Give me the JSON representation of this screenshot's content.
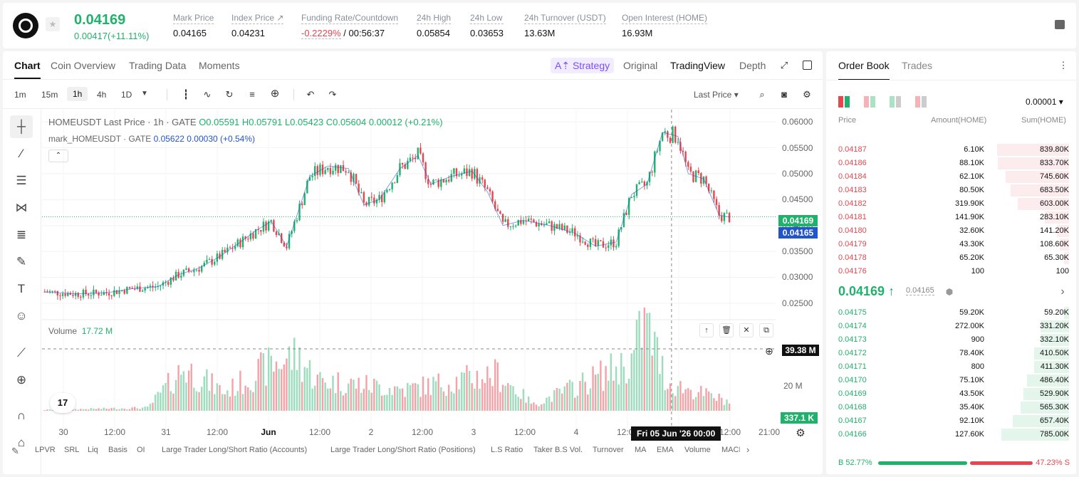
{
  "header": {
    "last_price": "0.04169",
    "change": "0.00417(+11.11%)",
    "stats": [
      {
        "label": "Mark Price",
        "value": "0.04165"
      },
      {
        "label": "Index Price ↗",
        "value": "0.04231"
      },
      {
        "label": "Funding Rate/Countdown",
        "value_neg": "-0.2229%",
        "value": " / 00:56:37"
      },
      {
        "label": "24h High",
        "value": "0.05854"
      },
      {
        "label": "24h Low",
        "value": "0.03653"
      },
      {
        "label": "24h Turnover (USDT)",
        "value": "13.63M"
      },
      {
        "label": "Open Interest (HOME)",
        "value": "16.93M"
      }
    ]
  },
  "chart_tabs": [
    "Chart",
    "Coin Overview",
    "Trading Data",
    "Moments"
  ],
  "views": {
    "strategy": "Strategy",
    "original": "Original",
    "tradingview": "TradingView",
    "depth": "Depth"
  },
  "timeframes": [
    "1m",
    "15m",
    "1h",
    "4h",
    "1D"
  ],
  "last_price_select": "Last Price ▾",
  "legend": {
    "symbol": "HOMEUSDT Last Price · 1h · GATE",
    "o": "O0.05591",
    "h": "H0.05791",
    "l": "L0.05423",
    "c": "C0.05604",
    "chg": "0.00012 (+0.21%)",
    "mark_symbol": "mark_HOMEUSDT · GATE",
    "mark_val": "0.05622 0.00030 (+0.54%)"
  },
  "volume": {
    "label": "Volume",
    "value": "17.72 M",
    "crosshair_value": "39.38 M",
    "last_value": "337.1 K",
    "axis_20m": "20 M"
  },
  "price_tags": {
    "last": "0.04169",
    "mark": "0.04165"
  },
  "crosshair_date": "Fri 05 Jun '26   00:00",
  "indicators": [
    "LPVR",
    "SRL",
    "Liq",
    "Basis",
    "OI",
    "Large Trader Long/Short Ratio (Accounts)",
    "Large Trader Long/Short Ratio (Positions)",
    "L.S Ratio",
    "Taker B.S Vol.",
    "Turnover",
    "MA",
    "EMA",
    "Volume",
    "MACD"
  ],
  "chart_data": {
    "type": "candlestick",
    "symbol": "HOMEUSDT",
    "interval": "1h",
    "ylim": [
      0.0225,
      0.061
    ],
    "y_ticks": [
      "0.06000",
      "0.05500",
      "0.05000",
      "0.04500",
      "0.04000",
      "0.03500",
      "0.03000",
      "0.02500"
    ],
    "x_ticks": [
      "30",
      "12:00",
      "31",
      "12:00",
      "Jun",
      "12:00",
      "2",
      "12:00",
      "3",
      "12:00",
      "4",
      "12:00",
      "12:00",
      "21:00"
    ],
    "key_points": [
      {
        "x": 0,
        "y": 0.0272
      },
      {
        "x": 12,
        "y": 0.0268
      },
      {
        "x": 24,
        "y": 0.027
      },
      {
        "x": 34,
        "y": 0.0278
      },
      {
        "x": 44,
        "y": 0.0282
      },
      {
        "x": 52,
        "y": 0.0305
      },
      {
        "x": 60,
        "y": 0.0318
      },
      {
        "x": 68,
        "y": 0.034
      },
      {
        "x": 76,
        "y": 0.0368
      },
      {
        "x": 82,
        "y": 0.039
      },
      {
        "x": 88,
        "y": 0.0408
      },
      {
        "x": 94,
        "y": 0.036
      },
      {
        "x": 98,
        "y": 0.042
      },
      {
        "x": 103,
        "y": 0.0495
      },
      {
        "x": 110,
        "y": 0.0515
      },
      {
        "x": 118,
        "y": 0.051
      },
      {
        "x": 124,
        "y": 0.044
      },
      {
        "x": 130,
        "y": 0.045
      },
      {
        "x": 138,
        "y": 0.051
      },
      {
        "x": 145,
        "y": 0.0535
      },
      {
        "x": 150,
        "y": 0.048
      },
      {
        "x": 158,
        "y": 0.0495
      },
      {
        "x": 166,
        "y": 0.0505
      },
      {
        "x": 172,
        "y": 0.0465
      },
      {
        "x": 178,
        "y": 0.04
      },
      {
        "x": 186,
        "y": 0.041
      },
      {
        "x": 196,
        "y": 0.04
      },
      {
        "x": 206,
        "y": 0.0385
      },
      {
        "x": 214,
        "y": 0.036
      },
      {
        "x": 222,
        "y": 0.0368
      },
      {
        "x": 228,
        "y": 0.046
      },
      {
        "x": 234,
        "y": 0.048
      },
      {
        "x": 240,
        "y": 0.058
      },
      {
        "x": 246,
        "y": 0.0572
      },
      {
        "x": 250,
        "y": 0.05
      },
      {
        "x": 256,
        "y": 0.049
      },
      {
        "x": 262,
        "y": 0.042
      },
      {
        "x": 266,
        "y": 0.0416
      }
    ],
    "volume_key_points": [
      {
        "x": 0,
        "v": 0.3
      },
      {
        "x": 40,
        "v": 1.0
      },
      {
        "x": 54,
        "v": 14
      },
      {
        "x": 70,
        "v": 6
      },
      {
        "x": 88,
        "v": 15
      },
      {
        "x": 98,
        "v": 18
      },
      {
        "x": 106,
        "v": 10
      },
      {
        "x": 140,
        "v": 7
      },
      {
        "x": 176,
        "v": 12
      },
      {
        "x": 190,
        "v": 2
      },
      {
        "x": 228,
        "v": 16
      },
      {
        "x": 233,
        "v": 30
      },
      {
        "x": 242,
        "v": 9
      },
      {
        "x": 266,
        "v": 3
      }
    ]
  },
  "orderbook": {
    "tabs": [
      "Order Book",
      "Trades"
    ],
    "precision": "0.00001 ▾",
    "headers": {
      "price": "Price",
      "amount": "Amount(HOME)",
      "sum": "Sum(HOME)"
    },
    "asks": [
      {
        "price": "0.04187",
        "amount": "6.10K",
        "sum": "839.80K",
        "sum_frac": 0.96
      },
      {
        "price": "0.04186",
        "amount": "88.10K",
        "sum": "833.70K",
        "sum_frac": 0.95
      },
      {
        "price": "0.04184",
        "amount": "62.10K",
        "sum": "745.60K",
        "sum_frac": 0.85
      },
      {
        "price": "0.04183",
        "amount": "80.50K",
        "sum": "683.50K",
        "sum_frac": 0.78
      },
      {
        "price": "0.04182",
        "amount": "319.90K",
        "sum": "603.00K",
        "sum_frac": 0.69
      },
      {
        "price": "0.04181",
        "amount": "141.90K",
        "sum": "283.10K",
        "sum_frac": 0.32
      },
      {
        "price": "0.04180",
        "amount": "32.60K",
        "sum": "141.20K",
        "sum_frac": 0.16
      },
      {
        "price": "0.04179",
        "amount": "43.30K",
        "sum": "108.60K",
        "sum_frac": 0.12
      },
      {
        "price": "0.04178",
        "amount": "65.20K",
        "sum": "65.30K",
        "sum_frac": 0.07
      },
      {
        "price": "0.04176",
        "amount": "100",
        "sum": "100",
        "sum_frac": 0.0
      }
    ],
    "mid_price": "0.04169 ↑",
    "mid_mark": "0.04165",
    "bids": [
      {
        "price": "0.04175",
        "amount": "59.20K",
        "sum": "59.20K",
        "sum_frac": 0.07
      },
      {
        "price": "0.04174",
        "amount": "272.00K",
        "sum": "331.20K",
        "sum_frac": 0.38
      },
      {
        "price": "0.04173",
        "amount": "900",
        "sum": "332.10K",
        "sum_frac": 0.38
      },
      {
        "price": "0.04172",
        "amount": "78.40K",
        "sum": "410.50K",
        "sum_frac": 0.47
      },
      {
        "price": "0.04171",
        "amount": "800",
        "sum": "411.30K",
        "sum_frac": 0.47
      },
      {
        "price": "0.04170",
        "amount": "75.10K",
        "sum": "486.40K",
        "sum_frac": 0.56
      },
      {
        "price": "0.04169",
        "amount": "43.50K",
        "sum": "529.90K",
        "sum_frac": 0.61
      },
      {
        "price": "0.04168",
        "amount": "35.40K",
        "sum": "565.30K",
        "sum_frac": 0.65
      },
      {
        "price": "0.04167",
        "amount": "92.10K",
        "sum": "657.40K",
        "sum_frac": 0.75
      },
      {
        "price": "0.04166",
        "amount": "127.60K",
        "sum": "785.00K",
        "sum_frac": 0.9
      }
    ],
    "buy_ratio": "B 52.77%",
    "sell_ratio": "47.23% S"
  },
  "colors": {
    "up": "#20b26c",
    "down": "#e5464f",
    "mark": "#2255cc"
  }
}
